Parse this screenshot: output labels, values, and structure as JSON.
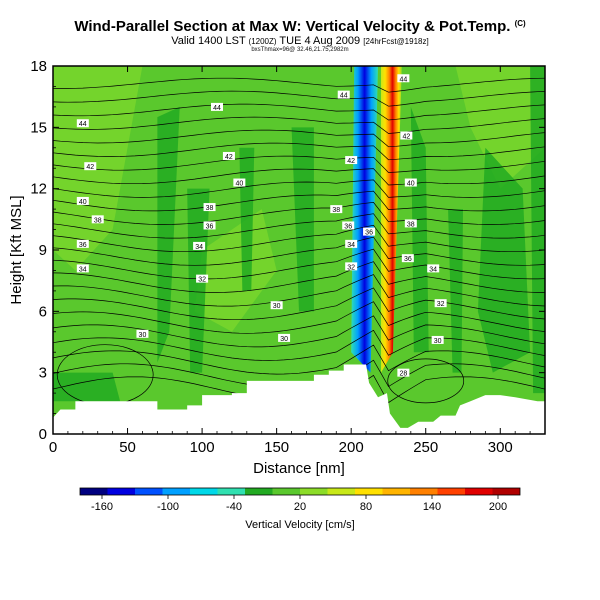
{
  "header": {
    "title": "Wind-Parallel Section at Max W: Vertical Velocity & Pot.Temp.",
    "copyright": "(C)",
    "valid_prefix": "Valid 1400 LST",
    "valid_utc": "(1200Z)",
    "valid_date": "TUE 4 Aug 2009",
    "valid_suffix": "[24hrFcst@1918z]",
    "location_line": "bxsThmax=96@ 32.46,21.75,2982m"
  },
  "colors": {
    "bg_green": "#5ac82d",
    "light_green": "#7fd82c",
    "dark_green": "#22aa22",
    "terrain": "#ffffff"
  },
  "chart_data": {
    "type": "heatmap",
    "title": "Wind-Parallel Section at Max W: Vertical Velocity & Pot.Temp.",
    "xlabel": "Distance [nm]",
    "ylabel": "Height [Kft MSL]",
    "xlim": [
      0,
      330
    ],
    "ylim": [
      0,
      18
    ],
    "x_ticks": [
      0,
      50,
      100,
      150,
      200,
      250,
      300
    ],
    "y_ticks": [
      0,
      3,
      6,
      9,
      12,
      15,
      18
    ],
    "colorbar": {
      "label": "Vertical Velocity [cm/s]",
      "range": [
        -180,
        220
      ],
      "tick_values": [
        -160,
        -100,
        -40,
        20,
        80,
        140,
        200
      ],
      "tick_labels": [
        "-160",
        "-100",
        "-40",
        "20",
        "80",
        "140",
        "200"
      ],
      "colors": [
        "#000080",
        "#0000e0",
        "#0050ff",
        "#00a0ff",
        "#00d8e8",
        "#30e0b0",
        "#22aa22",
        "#5ac82d",
        "#8cdc28",
        "#c8e818",
        "#ffe000",
        "#ffb400",
        "#ff8000",
        "#ff4000",
        "#e00000",
        "#b00000"
      ]
    },
    "updraft_center": {
      "x": 228,
      "height_bottom": 3,
      "height_top": 18,
      "peak": 200
    },
    "downdraft_center": {
      "x": 212,
      "height_bottom": 3,
      "height_top": 18,
      "peak": -160
    },
    "terrain": [
      [
        0,
        0.8
      ],
      [
        5,
        1.2
      ],
      [
        15,
        1.2
      ],
      [
        15,
        1.6
      ],
      [
        70,
        1.6
      ],
      [
        70,
        1.2
      ],
      [
        90,
        1.2
      ],
      [
        90,
        1.4
      ],
      [
        100,
        1.4
      ],
      [
        100,
        1.9
      ],
      [
        120,
        1.9
      ],
      [
        120,
        2.0
      ],
      [
        130,
        2.0
      ],
      [
        130,
        2.6
      ],
      [
        175,
        2.6
      ],
      [
        175,
        2.9
      ],
      [
        185,
        2.9
      ],
      [
        185,
        3.1
      ],
      [
        195,
        3.1
      ],
      [
        195,
        3.4
      ],
      [
        210,
        3.4
      ],
      [
        212,
        2.5
      ],
      [
        218,
        1.8
      ],
      [
        224,
        2.0
      ],
      [
        226,
        1.0
      ],
      [
        228,
        0.8
      ],
      [
        233,
        0.3
      ],
      [
        238,
        0.3
      ],
      [
        245,
        0.6
      ],
      [
        255,
        0.6
      ],
      [
        260,
        0.9
      ],
      [
        270,
        0.9
      ],
      [
        273,
        1.4
      ],
      [
        280,
        1.6
      ],
      [
        290,
        1.9
      ],
      [
        300,
        1.9
      ],
      [
        310,
        1.8
      ],
      [
        325,
        1.6
      ],
      [
        330,
        1.6
      ]
    ],
    "contour_labels": [
      {
        "x": 20,
        "y": 15.2,
        "text": "44"
      },
      {
        "x": 25,
        "y": 13.1,
        "text": "42"
      },
      {
        "x": 20,
        "y": 11.4,
        "text": "40"
      },
      {
        "x": 30,
        "y": 10.5,
        "text": "38"
      },
      {
        "x": 20,
        "y": 9.3,
        "text": "36"
      },
      {
        "x": 20,
        "y": 8.1,
        "text": "34"
      },
      {
        "x": 110,
        "y": 16.0,
        "text": "44"
      },
      {
        "x": 118,
        "y": 13.6,
        "text": "42"
      },
      {
        "x": 125,
        "y": 12.3,
        "text": "40"
      },
      {
        "x": 105,
        "y": 11.1,
        "text": "38"
      },
      {
        "x": 105,
        "y": 10.2,
        "text": "36"
      },
      {
        "x": 98,
        "y": 9.2,
        "text": "34"
      },
      {
        "x": 100,
        "y": 7.6,
        "text": "32"
      },
      {
        "x": 60,
        "y": 4.9,
        "text": "30"
      },
      {
        "x": 150,
        "y": 6.3,
        "text": "30"
      },
      {
        "x": 155,
        "y": 4.7,
        "text": "30"
      },
      {
        "x": 195,
        "y": 16.6,
        "text": "44"
      },
      {
        "x": 200,
        "y": 13.4,
        "text": "42"
      },
      {
        "x": 190,
        "y": 11.0,
        "text": "38"
      },
      {
        "x": 198,
        "y": 10.2,
        "text": "36"
      },
      {
        "x": 200,
        "y": 9.3,
        "text": "34"
      },
      {
        "x": 200,
        "y": 8.2,
        "text": "32"
      },
      {
        "x": 212,
        "y": 9.9,
        "text": "36"
      },
      {
        "x": 235,
        "y": 17.4,
        "text": "44"
      },
      {
        "x": 237,
        "y": 14.6,
        "text": "42"
      },
      {
        "x": 240,
        "y": 12.3,
        "text": "40"
      },
      {
        "x": 240,
        "y": 10.3,
        "text": "38"
      },
      {
        "x": 238,
        "y": 8.6,
        "text": "36"
      },
      {
        "x": 255,
        "y": 8.1,
        "text": "34"
      },
      {
        "x": 260,
        "y": 6.4,
        "text": "32"
      },
      {
        "x": 258,
        "y": 4.6,
        "text": "30"
      },
      {
        "x": 235,
        "y": 3.0,
        "text": "28"
      }
    ]
  }
}
